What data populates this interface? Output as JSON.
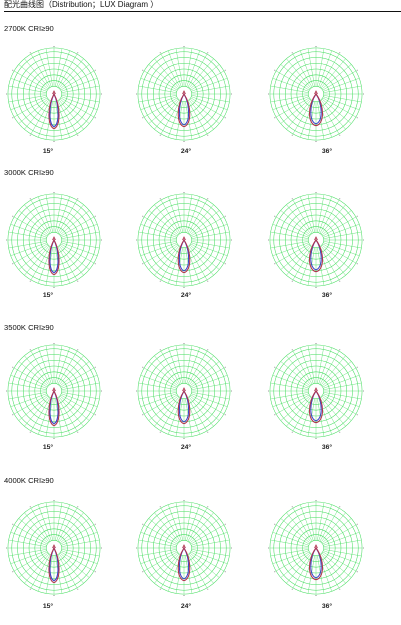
{
  "header": {
    "title": "配光曲线图（Distribution；LUX Diagram ）"
  },
  "colors": {
    "grid": "#3fdc5a",
    "radial": "#55e06c",
    "curve_c0": "#b0304a",
    "curve_c90": "#3c46c8",
    "border": "#111111"
  },
  "beam_angles": [
    "15°",
    "24°",
    "36°"
  ],
  "groups": [
    {
      "title": "2700K CRI≥90",
      "charts": [
        {
          "label": "15°",
          "curve": "curve-15"
        },
        {
          "label": "24°",
          "curve": "curve-24"
        },
        {
          "label": "36°",
          "curve": "curve-36"
        }
      ]
    },
    {
      "title": "3000K CRI≥90",
      "charts": [
        {
          "label": "15°",
          "curve": "curve-15"
        },
        {
          "label": "24°",
          "curve": "curve-24"
        },
        {
          "label": "36°",
          "curve": "curve-36"
        }
      ]
    },
    {
      "title": "3500K CRI≥90",
      "charts": [
        {
          "label": "15°",
          "curve": "curve-15"
        },
        {
          "label": "24°",
          "curve": "curve-24"
        },
        {
          "label": "36°",
          "curve": "curve-36"
        }
      ]
    },
    {
      "title": "4000K CRI≥90",
      "charts": [
        {
          "label": "15°",
          "curve": "curve-15"
        },
        {
          "label": "24°",
          "curve": "curve-24"
        },
        {
          "label": "36°",
          "curve": "curve-36"
        }
      ]
    }
  ]
}
